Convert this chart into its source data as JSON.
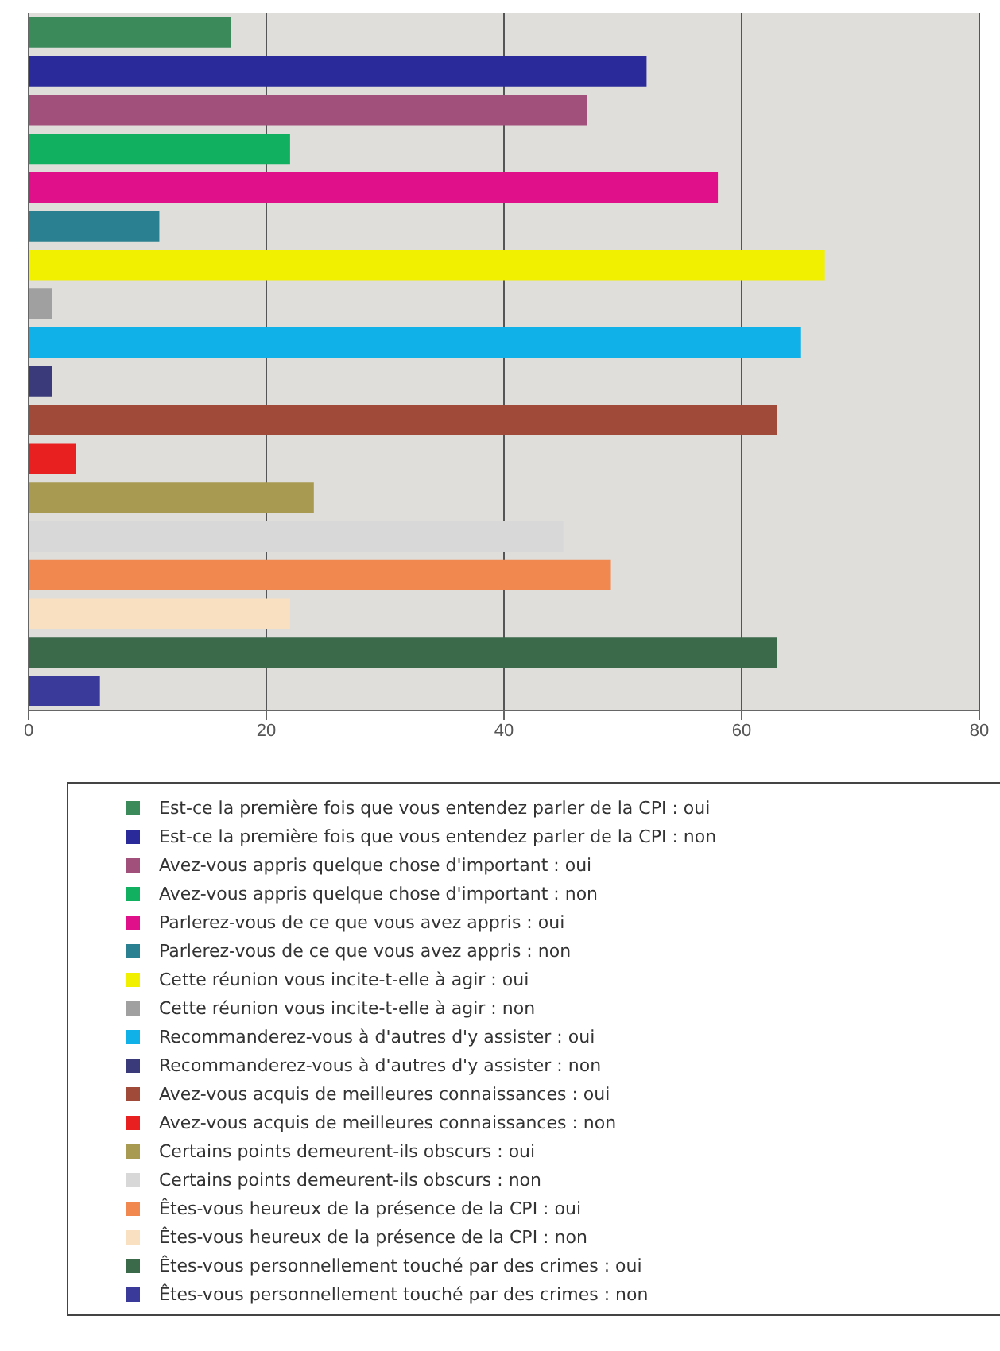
{
  "chart_data": {
    "type": "bar",
    "orientation": "horizontal",
    "stacked": true,
    "categories": [
      null,
      null,
      null,
      null,
      null,
      null,
      null,
      null,
      null,
      null,
      null,
      null,
      null,
      null,
      null,
      null,
      null,
      null
    ],
    "series": [
      {
        "name": "Est-ce la première fois que vous entendez parler de la CPI : oui",
        "color": "#3a8a5a",
        "values": [
          17,
          null,
          null,
          null,
          null,
          null,
          null,
          null,
          null,
          null,
          null,
          null,
          null,
          null,
          null,
          null,
          null,
          null
        ]
      },
      {
        "name": "Est-ce la première fois que vous entendez parler de la CPI : non",
        "color": "#2a2a9a",
        "values": [
          null,
          52,
          null,
          null,
          null,
          null,
          null,
          null,
          null,
          null,
          null,
          null,
          null,
          null,
          null,
          null,
          null,
          null
        ]
      },
      {
        "name": "Avez-vous appris quelque chose d'important : oui",
        "color": "#a0507a",
        "values": [
          null,
          null,
          47,
          null,
          null,
          null,
          null,
          null,
          null,
          null,
          null,
          null,
          null,
          null,
          null,
          null,
          null,
          null
        ]
      },
      {
        "name": "Avez-vous appris quelque chose d'important : non",
        "color": "#10b060",
        "values": [
          null,
          null,
          null,
          22,
          null,
          null,
          null,
          null,
          null,
          null,
          null,
          null,
          null,
          null,
          null,
          null,
          null,
          null
        ]
      },
      {
        "name": "Parlerez-vous de ce que vous avez appris : oui",
        "color": "#e0108a",
        "values": [
          null,
          null,
          null,
          null,
          58,
          null,
          null,
          null,
          null,
          null,
          null,
          null,
          null,
          null,
          null,
          null,
          null,
          null
        ]
      },
      {
        "name": "Parlerez-vous de ce que vous avez appris : non",
        "color": "#2a8090",
        "values": [
          null,
          null,
          null,
          null,
          null,
          11,
          null,
          null,
          null,
          null,
          null,
          null,
          null,
          null,
          null,
          null,
          null,
          null
        ]
      },
      {
        "name": "Cette réunion vous incite-t-elle à agir : oui",
        "color": "#f0f000",
        "values": [
          null,
          null,
          null,
          null,
          null,
          null,
          67,
          null,
          null,
          null,
          null,
          null,
          null,
          null,
          null,
          null,
          null,
          null
        ]
      },
      {
        "name": "Cette réunion vous incite-t-elle à agir : non",
        "color": "#a0a0a0",
        "values": [
          null,
          null,
          null,
          null,
          null,
          null,
          null,
          2,
          null,
          null,
          null,
          null,
          null,
          null,
          null,
          null,
          null,
          null
        ]
      },
      {
        "name": "Recommanderez-vous à d'autres d'y assister : oui",
        "color": "#10b0e8",
        "values": [
          null,
          null,
          null,
          null,
          null,
          null,
          null,
          null,
          65,
          null,
          null,
          null,
          null,
          null,
          null,
          null,
          null,
          null
        ]
      },
      {
        "name": "Recommanderez-vous à d'autres d'y assister : non",
        "color": "#3a3a7a",
        "values": [
          null,
          null,
          null,
          null,
          null,
          null,
          null,
          null,
          null,
          2,
          null,
          null,
          null,
          null,
          null,
          null,
          null,
          null
        ]
      },
      {
        "name": "Avez-vous acquis de meilleures connaissances : oui",
        "color": "#a04a3a",
        "values": [
          null,
          null,
          null,
          null,
          null,
          null,
          null,
          null,
          null,
          null,
          63,
          null,
          null,
          null,
          null,
          null,
          null,
          null
        ]
      },
      {
        "name": "Avez-vous acquis de meilleures connaissances : non",
        "color": "#e82020",
        "values": [
          null,
          null,
          null,
          null,
          null,
          null,
          null,
          null,
          null,
          null,
          null,
          4,
          null,
          null,
          null,
          null,
          null,
          null
        ]
      },
      {
        "name": "Certains points demeurent-ils obscurs : oui",
        "color": "#a89a50",
        "values": [
          null,
          null,
          null,
          null,
          null,
          null,
          null,
          null,
          null,
          null,
          null,
          null,
          24,
          null,
          null,
          null,
          null,
          null
        ]
      },
      {
        "name": "Certains points demeurent-ils obscurs : non",
        "color": "#d8d8d8",
        "values": [
          null,
          null,
          null,
          null,
          null,
          null,
          null,
          null,
          null,
          null,
          null,
          null,
          null,
          45,
          null,
          null,
          null,
          null
        ]
      },
      {
        "name": "Êtes-vous heureux de la présence de la CPI : oui",
        "color": "#f08850",
        "values": [
          null,
          null,
          null,
          null,
          null,
          null,
          null,
          null,
          null,
          null,
          null,
          null,
          null,
          null,
          49,
          null,
          null,
          null
        ]
      },
      {
        "name": "Êtes-vous heureux de la présence de la CPI : non",
        "color": "#f8e0c0",
        "values": [
          null,
          null,
          null,
          null,
          null,
          null,
          null,
          null,
          null,
          null,
          null,
          null,
          null,
          null,
          null,
          22,
          null,
          null
        ]
      },
      {
        "name": "Êtes-vous personnellement touché par des crimes : oui",
        "color": "#3a6a4a",
        "values": [
          null,
          null,
          null,
          null,
          null,
          null,
          null,
          null,
          null,
          null,
          null,
          null,
          null,
          null,
          null,
          null,
          63,
          null
        ]
      },
      {
        "name": "Êtes-vous personnellement touché par des crimes : non",
        "color": "#3a3a9a",
        "values": [
          null,
          null,
          null,
          null,
          null,
          null,
          null,
          null,
          null,
          null,
          null,
          null,
          null,
          null,
          null,
          null,
          null,
          6
        ]
      }
    ],
    "xlim": [
      0,
      80
    ],
    "xticks": [
      0,
      20,
      40,
      60,
      80
    ],
    "grid": "x",
    "legend": "bottom",
    "tick_labels": "x"
  }
}
